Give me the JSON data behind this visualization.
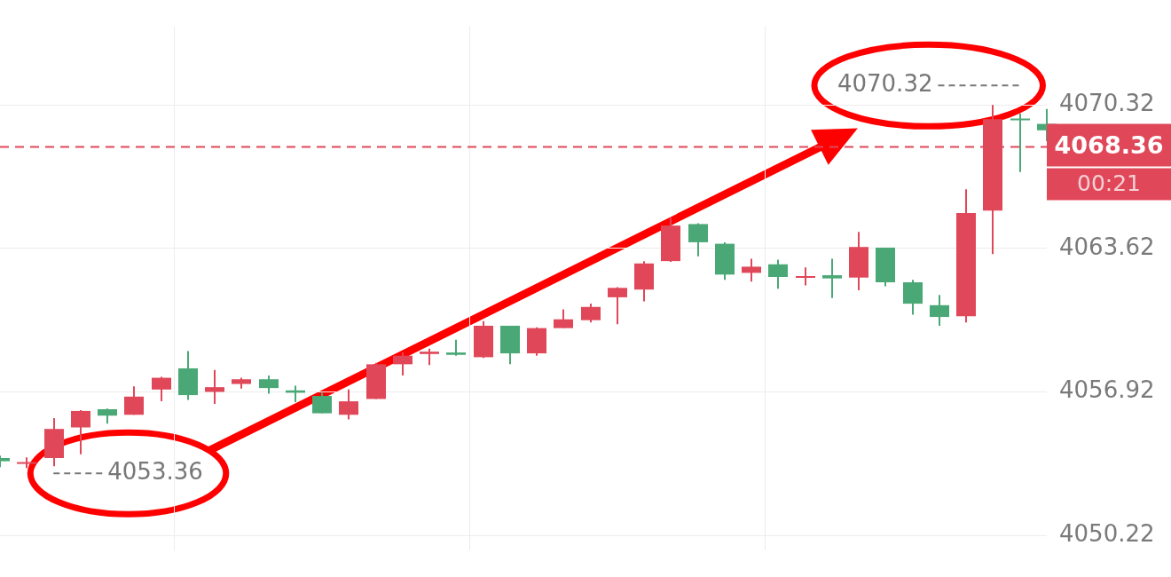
{
  "chart_data": {
    "type": "candlestick",
    "categories": [
      null,
      null,
      null,
      null,
      null,
      null,
      null,
      null,
      null,
      null,
      null,
      null,
      null,
      null,
      null,
      null,
      null,
      null,
      null,
      null,
      null,
      null,
      null,
      null,
      null,
      null,
      null,
      null,
      null,
      null,
      null,
      null,
      null,
      null,
      null,
      null,
      null,
      null,
      null,
      null
    ],
    "ohlc": [
      [
        4053.83,
        4053.94,
        4053.4,
        4053.68
      ],
      [
        4053.57,
        4053.86,
        4053.36,
        4053.64
      ],
      [
        4053.83,
        4055.7,
        4053.45,
        4055.19
      ],
      [
        4055.26,
        4056.07,
        4054.01,
        4056.03
      ],
      [
        4056.11,
        4056.14,
        4055.44,
        4055.81
      ],
      [
        4055.85,
        4057.18,
        4055.85,
        4056.7
      ],
      [
        4057.03,
        4057.62,
        4056.48,
        4057.58
      ],
      [
        4058.02,
        4058.83,
        4056.55,
        4056.77
      ],
      [
        4056.92,
        4057.95,
        4056.36,
        4057.14
      ],
      [
        4057.29,
        4057.58,
        4057.07,
        4057.51
      ],
      [
        4057.51,
        4057.69,
        4056.84,
        4057.1
      ],
      [
        4056.99,
        4057.21,
        4056.44,
        4056.88
      ],
      [
        4056.73,
        4056.88,
        4055.92,
        4055.92
      ],
      [
        4055.85,
        4057.03,
        4055.63,
        4056.48
      ],
      [
        4056.59,
        4058.28,
        4056.59,
        4058.21
      ],
      [
        4058.21,
        4058.76,
        4057.69,
        4058.61
      ],
      [
        4058.69,
        4058.94,
        4058.17,
        4058.8
      ],
      [
        4058.76,
        4059.35,
        4058.61,
        4058.65
      ],
      [
        4058.54,
        4060.23,
        4058.5,
        4060.01
      ],
      [
        4060.01,
        4060.01,
        4058.21,
        4058.72
      ],
      [
        4058.72,
        4059.94,
        4058.61,
        4059.9
      ],
      [
        4059.9,
        4060.78,
        4059.9,
        4060.31
      ],
      [
        4060.27,
        4061.04,
        4060.16,
        4060.89
      ],
      [
        4061.34,
        4061.81,
        4060.08,
        4061.78
      ],
      [
        4061.7,
        4063.03,
        4061.15,
        4062.92
      ],
      [
        4063.03,
        4065.05,
        4062.99,
        4064.69
      ],
      [
        4064.76,
        4064.8,
        4063.25,
        4063.91
      ],
      [
        4063.84,
        4063.91,
        4062.15,
        4062.4
      ],
      [
        4062.48,
        4063.14,
        4062.07,
        4062.77
      ],
      [
        4062.88,
        4063.1,
        4061.74,
        4062.29
      ],
      [
        4062.26,
        4062.74,
        4061.89,
        4062.33
      ],
      [
        4062.37,
        4063.14,
        4061.3,
        4062.22
      ],
      [
        4062.26,
        4064.39,
        4061.67,
        4063.69
      ],
      [
        4063.66,
        4063.66,
        4061.85,
        4062.04
      ],
      [
        4062.04,
        4062.15,
        4060.53,
        4061.04
      ],
      [
        4060.97,
        4061.45,
        4060.01,
        4060.42
      ],
      [
        4060.45,
        4066.38,
        4060.16,
        4065.28
      ],
      [
        4065.39,
        4070.32,
        4063.36,
        4069.66
      ],
      [
        4069.69,
        4069.92,
        4067.19,
        4069.62
      ],
      [
        4069.44,
        4070.14,
        4068.63,
        4069.14
      ]
    ],
    "colors": [
      "#4aa876",
      "#e0485a",
      "#e0485a",
      "#e0485a",
      "#4aa876",
      "#e0485a",
      "#e0485a",
      "#4aa876",
      "#e0485a",
      "#e0485a",
      "#4aa876",
      "#4aa876",
      "#4aa876",
      "#e0485a",
      "#e0485a",
      "#e0485a",
      "#e0485a",
      "#4aa876",
      "#e0485a",
      "#4aa876",
      "#e0485a",
      "#e0485a",
      "#e0485a",
      "#e0485a",
      "#e0485a",
      "#e0485a",
      "#4aa876",
      "#4aa876",
      "#e0485a",
      "#4aa876",
      "#e0485a",
      "#4aa876",
      "#e0485a",
      "#4aa876",
      "#4aa876",
      "#4aa876",
      "#e0485a",
      "#e0485a",
      "#4aa876",
      "#4aa876"
    ],
    "ylim": [
      4049.5,
      4074.0
    ],
    "yticks": [
      4050.22,
      4056.92,
      4063.62,
      4070.32
    ],
    "grid": true,
    "ref_lines": [
      {
        "axis": "y",
        "value": 4068.36,
        "label": "4068.36",
        "color": "#e0485a",
        "line_style": "dashed"
      }
    ],
    "annotations": [
      "4070.32",
      "4053.36",
      "00:21"
    ]
  }
}
